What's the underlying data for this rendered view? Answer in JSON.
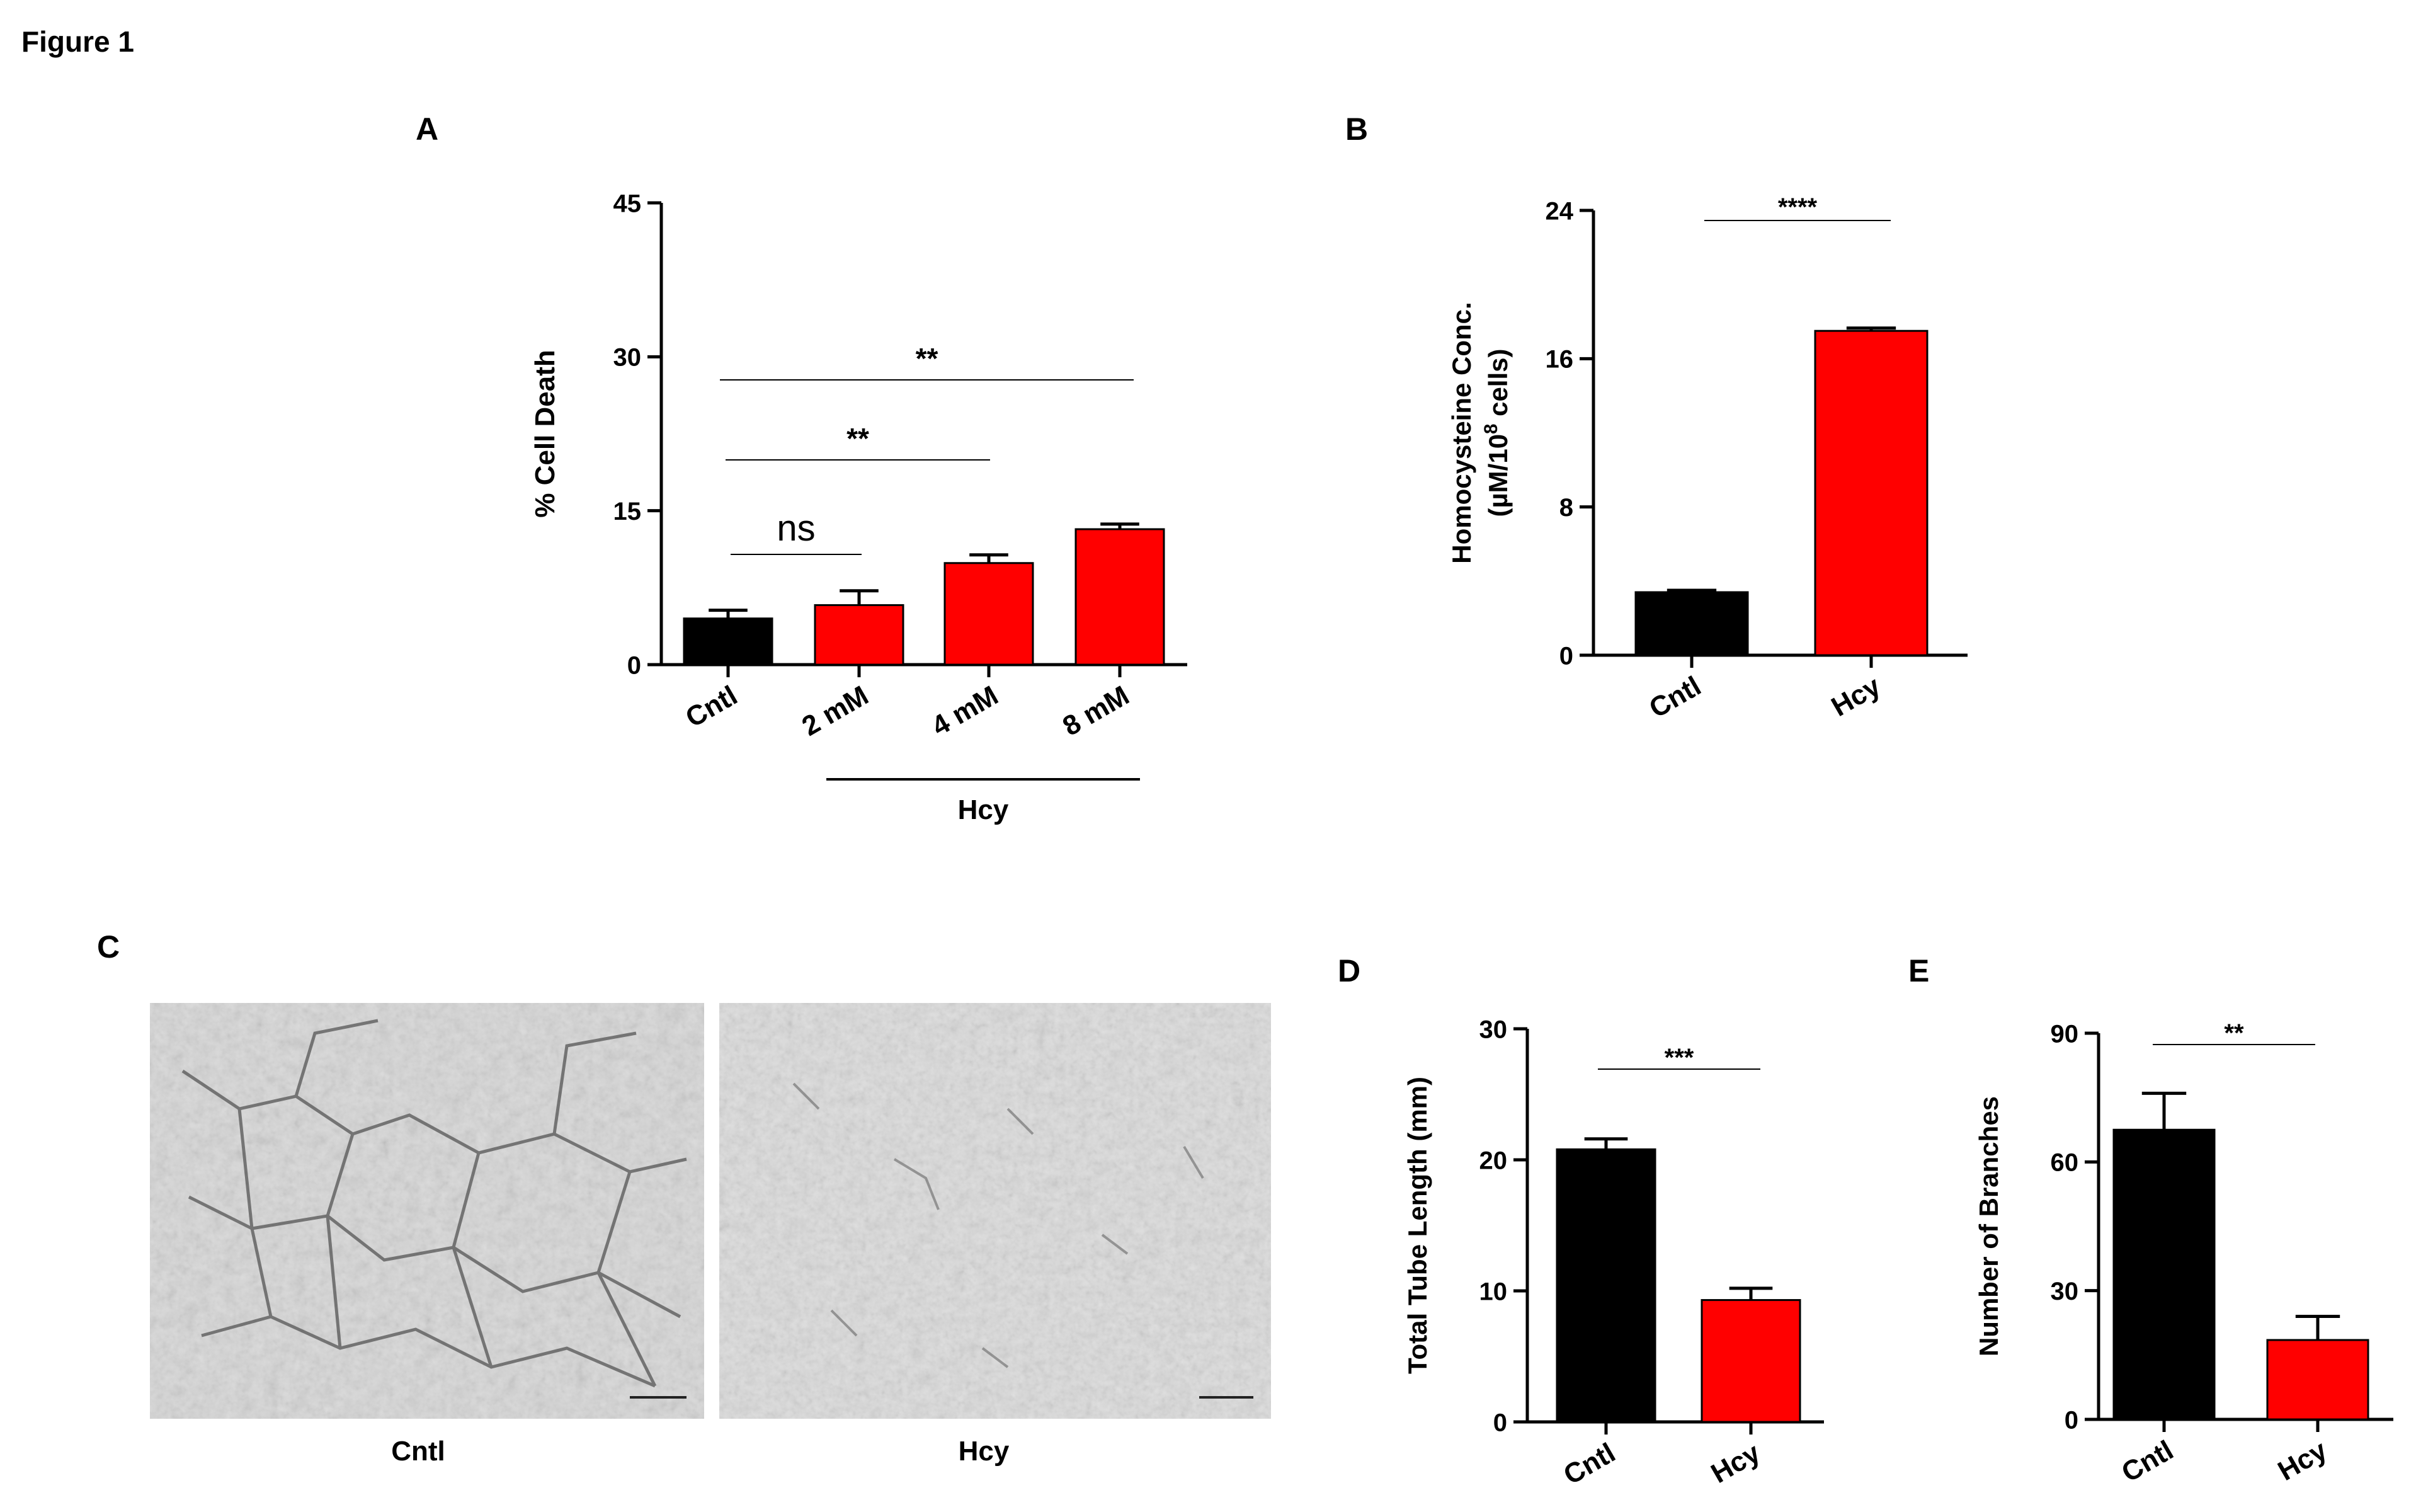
{
  "figure_title": "Figure 1",
  "colors": {
    "control": "#000000",
    "treatment": "#ff0000",
    "axis": "#000000",
    "background": "#ffffff"
  },
  "panels": {
    "A": {
      "letter": "A"
    },
    "B": {
      "letter": "B"
    },
    "C": {
      "letter": "C",
      "captions": [
        "Cntl",
        "Hcy"
      ]
    },
    "D": {
      "letter": "D"
    },
    "E": {
      "letter": "E"
    }
  },
  "chart_data": [
    {
      "panel": "A",
      "type": "bar",
      "categories": [
        "Cntl",
        "2 mM",
        "4 mM",
        "8 mM"
      ],
      "values": [
        4.5,
        5.8,
        9.9,
        13.2
      ],
      "errors": [
        0.8,
        1.4,
        0.8,
        0.5
      ],
      "ylabel": "% Cell Death",
      "ylim": [
        0,
        45
      ],
      "yticks": [
        "0",
        "15",
        "30",
        "45"
      ],
      "group_label": "Hcy",
      "annotations": [
        {
          "text": "ns",
          "from": 0,
          "to": 1
        },
        {
          "text": "**",
          "from": 0,
          "to": 2
        },
        {
          "text": "**",
          "from": 0,
          "to": 3
        }
      ],
      "grid": false
    },
    {
      "panel": "B",
      "type": "bar",
      "categories": [
        "Cntl",
        "Hcy"
      ],
      "values": [
        3.4,
        17.5
      ],
      "errors": [
        0.1,
        0.15
      ],
      "ylabel": "Homocysteine Conc.",
      "ylabel_line2_prefix": "(µM/10",
      "ylabel_line2_sup": "8",
      "ylabel_line2_suffix": " cells)",
      "ylim": [
        0,
        24
      ],
      "yticks": [
        "0",
        "8",
        "16",
        "24"
      ],
      "annotations": [
        {
          "text": "****",
          "from": 0,
          "to": 1
        }
      ],
      "grid": false
    },
    {
      "panel": "D",
      "type": "bar",
      "categories": [
        "Cntl",
        "Hcy"
      ],
      "values": [
        20.8,
        9.3
      ],
      "errors": [
        0.8,
        0.9
      ],
      "ylabel": "Total Tube Length (mm)",
      "ylim": [
        0,
        30
      ],
      "yticks": [
        "0",
        "10",
        "20",
        "30"
      ],
      "annotations": [
        {
          "text": "***",
          "from": 0,
          "to": 1
        }
      ],
      "grid": false
    },
    {
      "panel": "E",
      "type": "bar",
      "categories": [
        "Cntl",
        "Hcy"
      ],
      "values": [
        67.5,
        18.5
      ],
      "errors": [
        8.5,
        5.5
      ],
      "ylabel": "Number of Branches",
      "ylim": [
        0,
        90
      ],
      "yticks": [
        "0",
        "30",
        "60",
        "90"
      ],
      "annotations": [
        {
          "text": "**",
          "from": 0,
          "to": 1
        }
      ],
      "grid": false
    }
  ]
}
